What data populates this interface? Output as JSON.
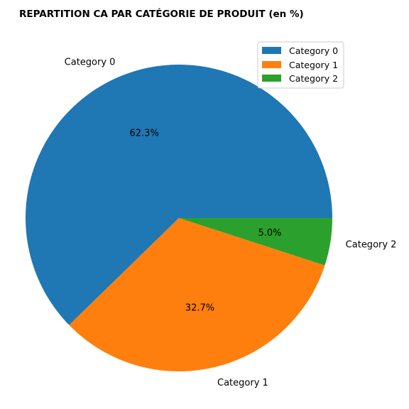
{
  "chart_data": {
    "type": "pie",
    "title": "REPARTITION CA PAR CATÉGORIE DE PRODUIT (en %)",
    "categories": [
      "Category 0",
      "Category 1",
      "Category 2"
    ],
    "values": [
      62.3,
      32.7,
      5.0
    ],
    "percent_labels": [
      "62.3%",
      "32.7%",
      "5.0%"
    ],
    "colors": [
      "#1f77b4",
      "#ff7f0e",
      "#2ca02c"
    ],
    "legend": {
      "placement": "top-right",
      "entries": [
        "Category 0",
        "Category 1",
        "Category 2"
      ]
    },
    "start_angle": 0,
    "direction": "counterclockwise"
  }
}
